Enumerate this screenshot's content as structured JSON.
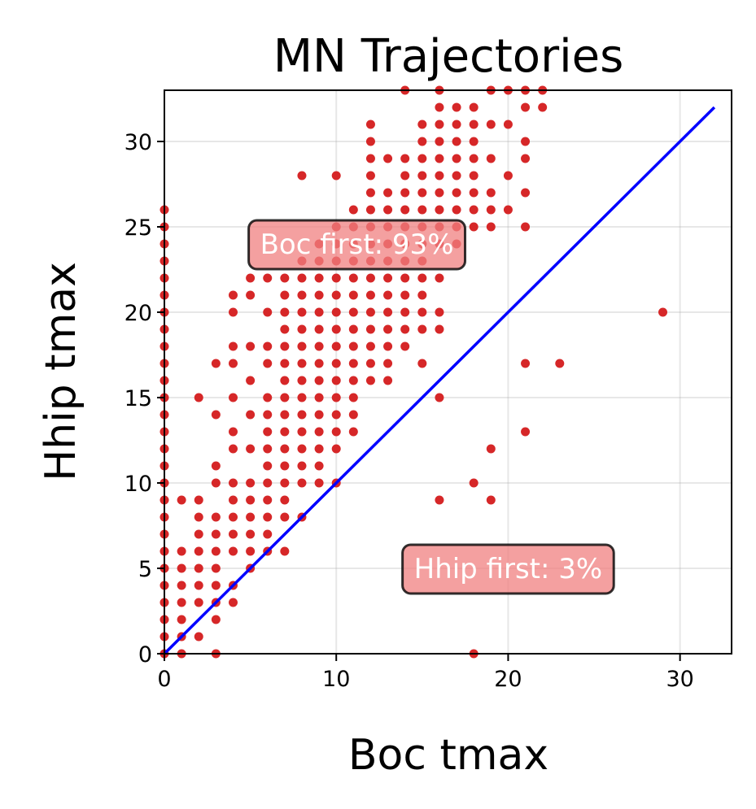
{
  "chart_data": {
    "type": "scatter",
    "title": "MN Trajectories",
    "xlabel": "Boc tmax",
    "ylabel": "Hhip tmax",
    "xlim": [
      0,
      33
    ],
    "ylim": [
      0,
      33
    ],
    "xticks": [
      "0",
      "10",
      "20",
      "30"
    ],
    "yticks": [
      "0",
      "5",
      "10",
      "15",
      "20",
      "25",
      "30"
    ],
    "grid": true,
    "colors": {
      "points": "#d62728",
      "diagonal": "#0000ff",
      "annotation_fill": "#f08080"
    },
    "diagonal": {
      "x": [
        0,
        32
      ],
      "y": [
        0,
        32
      ]
    },
    "annotations": [
      {
        "text": "Boc first: 93%",
        "x": 11.2,
        "y": 24
      },
      {
        "text": "Hhip first: 3%",
        "x": 20,
        "y": 5
      }
    ],
    "series": [
      {
        "points": [
          [
            0,
            0
          ],
          [
            0,
            1
          ],
          [
            0,
            2
          ],
          [
            0,
            3
          ],
          [
            0,
            4
          ],
          [
            0,
            5
          ],
          [
            0,
            6
          ],
          [
            0,
            7
          ],
          [
            0,
            8
          ],
          [
            0,
            9
          ],
          [
            0,
            10
          ],
          [
            0,
            11
          ],
          [
            0,
            12
          ],
          [
            0,
            13
          ],
          [
            0,
            14
          ],
          [
            0,
            15
          ],
          [
            0,
            16
          ],
          [
            0,
            17
          ],
          [
            0,
            18
          ],
          [
            0,
            19
          ],
          [
            0,
            20
          ],
          [
            0,
            21
          ],
          [
            0,
            22
          ],
          [
            0,
            23
          ],
          [
            0,
            24
          ],
          [
            0,
            25
          ],
          [
            0,
            26
          ],
          [
            1,
            0
          ],
          [
            1,
            1
          ],
          [
            1,
            2
          ],
          [
            1,
            3
          ],
          [
            1,
            4
          ],
          [
            1,
            5
          ],
          [
            1,
            6
          ],
          [
            1,
            9
          ],
          [
            2,
            1
          ],
          [
            2,
            3
          ],
          [
            2,
            4
          ],
          [
            2,
            5
          ],
          [
            2,
            6
          ],
          [
            2,
            7
          ],
          [
            2,
            8
          ],
          [
            2,
            9
          ],
          [
            2,
            15
          ],
          [
            3,
            0
          ],
          [
            3,
            2
          ],
          [
            3,
            3
          ],
          [
            3,
            4
          ],
          [
            3,
            5
          ],
          [
            3,
            6
          ],
          [
            3,
            7
          ],
          [
            3,
            8
          ],
          [
            3,
            10
          ],
          [
            3,
            11
          ],
          [
            3,
            14
          ],
          [
            3,
            17
          ],
          [
            4,
            3
          ],
          [
            4,
            4
          ],
          [
            4,
            6
          ],
          [
            4,
            7
          ],
          [
            4,
            8
          ],
          [
            4,
            9
          ],
          [
            4,
            10
          ],
          [
            4,
            12
          ],
          [
            4,
            13
          ],
          [
            4,
            15
          ],
          [
            4,
            17
          ],
          [
            4,
            18
          ],
          [
            4,
            20
          ],
          [
            4,
            21
          ],
          [
            5,
            5
          ],
          [
            5,
            6
          ],
          [
            5,
            7
          ],
          [
            5,
            8
          ],
          [
            5,
            9
          ],
          [
            5,
            10
          ],
          [
            5,
            12
          ],
          [
            5,
            14
          ],
          [
            5,
            16
          ],
          [
            5,
            18
          ],
          [
            5,
            21
          ],
          [
            5,
            22
          ],
          [
            6,
            6
          ],
          [
            6,
            7
          ],
          [
            6,
            8
          ],
          [
            6,
            9
          ],
          [
            6,
            10
          ],
          [
            6,
            11
          ],
          [
            6,
            12
          ],
          [
            6,
            13
          ],
          [
            6,
            14
          ],
          [
            6,
            15
          ],
          [
            6,
            17
          ],
          [
            6,
            18
          ],
          [
            6,
            20
          ],
          [
            6,
            22
          ],
          [
            7,
            6
          ],
          [
            7,
            8
          ],
          [
            7,
            9
          ],
          [
            7,
            10
          ],
          [
            7,
            11
          ],
          [
            7,
            12
          ],
          [
            7,
            13
          ],
          [
            7,
            14
          ],
          [
            7,
            15
          ],
          [
            7,
            16
          ],
          [
            7,
            17
          ],
          [
            7,
            18
          ],
          [
            7,
            19
          ],
          [
            7,
            20
          ],
          [
            7,
            21
          ],
          [
            7,
            22
          ],
          [
            8,
            8
          ],
          [
            8,
            10
          ],
          [
            8,
            11
          ],
          [
            8,
            12
          ],
          [
            8,
            13
          ],
          [
            8,
            14
          ],
          [
            8,
            15
          ],
          [
            8,
            16
          ],
          [
            8,
            17
          ],
          [
            8,
            18
          ],
          [
            8,
            19
          ],
          [
            8,
            20
          ],
          [
            8,
            21
          ],
          [
            8,
            22
          ],
          [
            8,
            23
          ],
          [
            8,
            28
          ],
          [
            9,
            10
          ],
          [
            9,
            11
          ],
          [
            9,
            12
          ],
          [
            9,
            13
          ],
          [
            9,
            14
          ],
          [
            9,
            15
          ],
          [
            9,
            16
          ],
          [
            9,
            17
          ],
          [
            9,
            18
          ],
          [
            9,
            19
          ],
          [
            9,
            20
          ],
          [
            9,
            21
          ],
          [
            9,
            22
          ],
          [
            9,
            23
          ],
          [
            9,
            24
          ],
          [
            10,
            10
          ],
          [
            10,
            12
          ],
          [
            10,
            13
          ],
          [
            10,
            14
          ],
          [
            10,
            15
          ],
          [
            10,
            16
          ],
          [
            10,
            17
          ],
          [
            10,
            18
          ],
          [
            10,
            19
          ],
          [
            10,
            20
          ],
          [
            10,
            21
          ],
          [
            10,
            22
          ],
          [
            10,
            23
          ],
          [
            10,
            24
          ],
          [
            10,
            25
          ],
          [
            10,
            28
          ],
          [
            11,
            13
          ],
          [
            11,
            14
          ],
          [
            11,
            15
          ],
          [
            11,
            16
          ],
          [
            11,
            17
          ],
          [
            11,
            18
          ],
          [
            11,
            19
          ],
          [
            11,
            20
          ],
          [
            11,
            21
          ],
          [
            11,
            22
          ],
          [
            11,
            23
          ],
          [
            11,
            24
          ],
          [
            11,
            25
          ],
          [
            11,
            26
          ],
          [
            12,
            16
          ],
          [
            12,
            17
          ],
          [
            12,
            18
          ],
          [
            12,
            19
          ],
          [
            12,
            20
          ],
          [
            12,
            21
          ],
          [
            12,
            22
          ],
          [
            12,
            23
          ],
          [
            12,
            24
          ],
          [
            12,
            25
          ],
          [
            12,
            26
          ],
          [
            12,
            27
          ],
          [
            12,
            28
          ],
          [
            12,
            29
          ],
          [
            12,
            30
          ],
          [
            12,
            31
          ],
          [
            13,
            16
          ],
          [
            13,
            17
          ],
          [
            13,
            18
          ],
          [
            13,
            19
          ],
          [
            13,
            20
          ],
          [
            13,
            21
          ],
          [
            13,
            22
          ],
          [
            13,
            23
          ],
          [
            13,
            24
          ],
          [
            13,
            25
          ],
          [
            13,
            26
          ],
          [
            13,
            27
          ],
          [
            13,
            29
          ],
          [
            14,
            18
          ],
          [
            14,
            19
          ],
          [
            14,
            20
          ],
          [
            14,
            21
          ],
          [
            14,
            22
          ],
          [
            14,
            23
          ],
          [
            14,
            24
          ],
          [
            14,
            25
          ],
          [
            14,
            26
          ],
          [
            14,
            27
          ],
          [
            14,
            28
          ],
          [
            14,
            29
          ],
          [
            14,
            33
          ],
          [
            15,
            17
          ],
          [
            15,
            19
          ],
          [
            15,
            20
          ],
          [
            15,
            21
          ],
          [
            15,
            22
          ],
          [
            15,
            23
          ],
          [
            15,
            24
          ],
          [
            15,
            25
          ],
          [
            15,
            26
          ],
          [
            15,
            27
          ],
          [
            15,
            28
          ],
          [
            15,
            29
          ],
          [
            15,
            30
          ],
          [
            15,
            31
          ],
          [
            16,
            9
          ],
          [
            16,
            15
          ],
          [
            16,
            19
          ],
          [
            16,
            20
          ],
          [
            16,
            22
          ],
          [
            16,
            24
          ],
          [
            16,
            25
          ],
          [
            16,
            26
          ],
          [
            16,
            27
          ],
          [
            16,
            28
          ],
          [
            16,
            29
          ],
          [
            16,
            30
          ],
          [
            16,
            31
          ],
          [
            16,
            32
          ],
          [
            16,
            33
          ],
          [
            17,
            24
          ],
          [
            17,
            25
          ],
          [
            17,
            26
          ],
          [
            17,
            27
          ],
          [
            17,
            28
          ],
          [
            17,
            29
          ],
          [
            17,
            30
          ],
          [
            17,
            31
          ],
          [
            17,
            32
          ],
          [
            18,
            0
          ],
          [
            18,
            10
          ],
          [
            18,
            25
          ],
          [
            18,
            26
          ],
          [
            18,
            27
          ],
          [
            18,
            28
          ],
          [
            18,
            29
          ],
          [
            18,
            30
          ],
          [
            18,
            31
          ],
          [
            18,
            32
          ],
          [
            19,
            9
          ],
          [
            19,
            12
          ],
          [
            19,
            25
          ],
          [
            19,
            26
          ],
          [
            19,
            27
          ],
          [
            19,
            29
          ],
          [
            19,
            31
          ],
          [
            19,
            33
          ],
          [
            20,
            26
          ],
          [
            20,
            28
          ],
          [
            20,
            31
          ],
          [
            20,
            33
          ],
          [
            21,
            13
          ],
          [
            21,
            17
          ],
          [
            21,
            25
          ],
          [
            21,
            27
          ],
          [
            21,
            29
          ],
          [
            21,
            30
          ],
          [
            21,
            32
          ],
          [
            21,
            33
          ],
          [
            22,
            32
          ],
          [
            22,
            33
          ],
          [
            23,
            17
          ],
          [
            29,
            20
          ]
        ]
      }
    ]
  }
}
